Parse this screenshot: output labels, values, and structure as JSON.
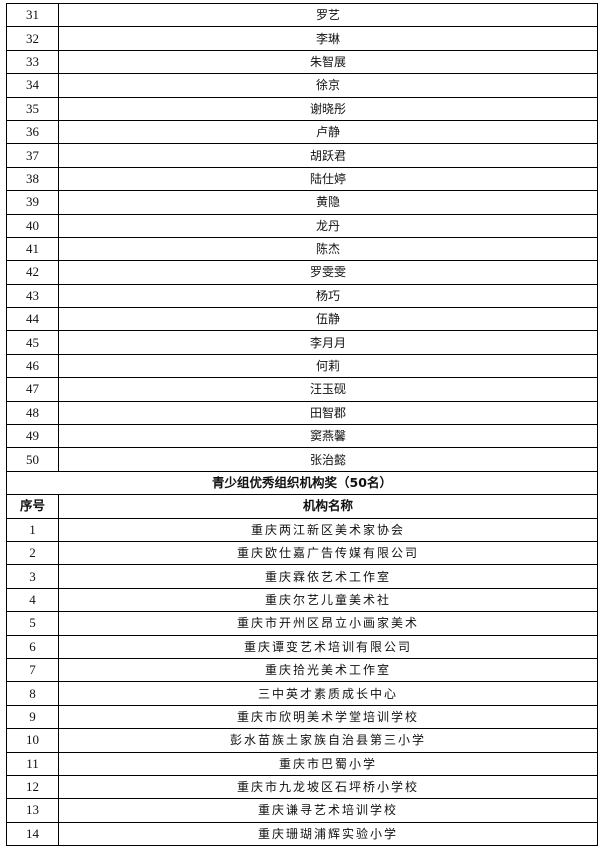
{
  "individuals": [
    {
      "no": "31",
      "name": "罗艺"
    },
    {
      "no": "32",
      "name": "李琳"
    },
    {
      "no": "33",
      "name": "朱智展"
    },
    {
      "no": "34",
      "name": "徐京"
    },
    {
      "no": "35",
      "name": "谢晓彤"
    },
    {
      "no": "36",
      "name": "卢静"
    },
    {
      "no": "37",
      "name": "胡跃君"
    },
    {
      "no": "38",
      "name": "陆仕婷"
    },
    {
      "no": "39",
      "name": "黄隐"
    },
    {
      "no": "40",
      "name": "龙丹"
    },
    {
      "no": "41",
      "name": "陈杰"
    },
    {
      "no": "42",
      "name": "罗雯雯"
    },
    {
      "no": "43",
      "name": "杨巧"
    },
    {
      "no": "44",
      "name": "伍静"
    },
    {
      "no": "45",
      "name": "李月月"
    },
    {
      "no": "46",
      "name": "何莉"
    },
    {
      "no": "47",
      "name": "汪玉砚"
    },
    {
      "no": "48",
      "name": "田智郡"
    },
    {
      "no": "49",
      "name": "窦燕馨"
    },
    {
      "no": "50",
      "name": "张治懿"
    }
  ],
  "section": {
    "title": "青少组优秀组织机构奖（50名）",
    "col_no": "序号",
    "col_name": "机构名称"
  },
  "organizations": [
    {
      "no": "1",
      "name": "重庆两江新区美术家协会"
    },
    {
      "no": "2",
      "name": "重庆欧仕嘉广告传媒有限公司"
    },
    {
      "no": "3",
      "name": "重庆霖依艺术工作室"
    },
    {
      "no": "4",
      "name": "重庆尔艺儿童美术社"
    },
    {
      "no": "5",
      "name": "重庆市开州区昂立小画家美术"
    },
    {
      "no": "6",
      "name": "重庆谭变艺术培训有限公司"
    },
    {
      "no": "7",
      "name": "重庆拾光美术工作室"
    },
    {
      "no": "8",
      "name": "三中英才素质成长中心"
    },
    {
      "no": "9",
      "name": "重庆市欣明美术学堂培训学校"
    },
    {
      "no": "10",
      "name": "彭水苗族土家族自治县第三小学"
    },
    {
      "no": "11",
      "name": "重庆市巴蜀小学"
    },
    {
      "no": "12",
      "name": "重庆市九龙坡区石坪桥小学校"
    },
    {
      "no": "13",
      "name": "重庆谦寻艺术培训学校"
    },
    {
      "no": "14",
      "name": "重庆珊瑚浦辉实验小学"
    }
  ]
}
